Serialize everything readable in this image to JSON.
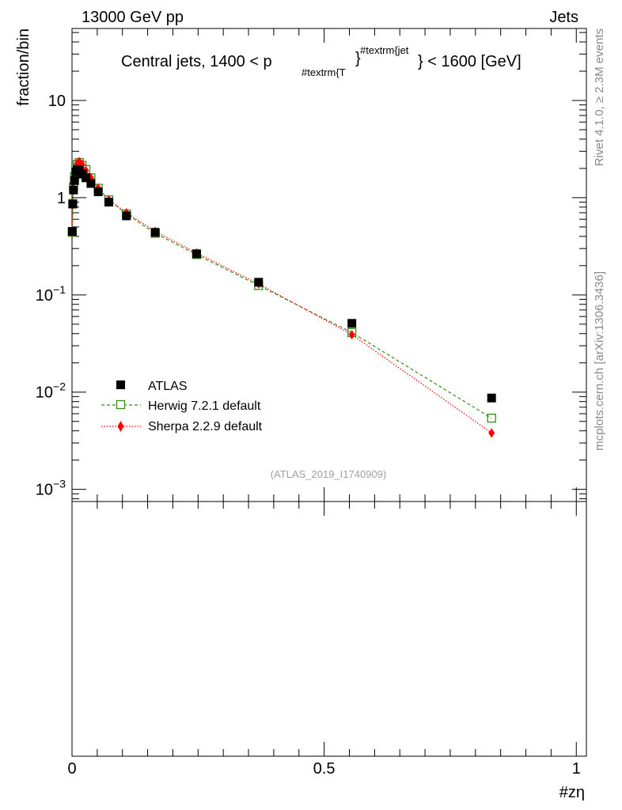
{
  "header": {
    "left": "13000 GeV pp",
    "right": "Jets"
  },
  "side_labels": {
    "rivet": "Rivet 4.1.0, ≥ 2.3M events",
    "mcplots": "mcplots.cern.ch [arXiv:1306.3436]"
  },
  "chart_data": {
    "type": "scatter",
    "title_main": "Central jets, 1400 < p",
    "title_sub": "#textrm{T",
    "title_sup": "#textrm{jet",
    "title_tail": "} < 1600 [GeV]",
    "title_brace": "}",
    "ylabel": "fraction/bin",
    "xlabel": "#zη",
    "watermark": "(ATLAS_2019_I1740909)",
    "yscale": "log",
    "ylim": [
      0.00075,
      55
    ],
    "xlim": [
      0,
      1.02
    ],
    "grid": false,
    "legend_position": "left-middle",
    "y_ticks": [
      {
        "v": 10,
        "base": "10",
        "exp": ""
      },
      {
        "v": 1,
        "base": "1",
        "exp": ""
      },
      {
        "v": 0.1,
        "base": "10",
        "exp": "−1"
      },
      {
        "v": 0.01,
        "base": "10",
        "exp": "−2"
      },
      {
        "v": 0.001,
        "base": "10",
        "exp": "−3"
      }
    ],
    "x_ticks": [
      {
        "v": 0,
        "label": "0"
      },
      {
        "v": 0.5,
        "label": "0.5"
      },
      {
        "v": 1,
        "label": "1"
      }
    ],
    "series": [
      {
        "name": "ATLAS",
        "style": "data",
        "color": "#000000",
        "x": [
          0.0005,
          0.0015,
          0.003,
          0.005,
          0.0075,
          0.0105,
          0.0145,
          0.02,
          0.0275,
          0.0375,
          0.052,
          0.073,
          0.108,
          0.165,
          0.247,
          0.37,
          0.555,
          0.832
        ],
        "y": [
          0.45,
          0.86,
          1.2,
          1.5,
          1.85,
          1.95,
          1.9,
          1.75,
          1.6,
          1.4,
          1.15,
          0.9,
          0.65,
          0.44,
          0.265,
          0.135,
          0.051,
          0.0087
        ]
      },
      {
        "name": "Herwig 7.2.1 default",
        "style": "herwig",
        "color": "#3a8a1c",
        "x": [
          0.0005,
          0.0015,
          0.003,
          0.005,
          0.0075,
          0.0105,
          0.0145,
          0.02,
          0.0275,
          0.0375,
          0.052,
          0.073,
          0.108,
          0.165,
          0.247,
          0.37,
          0.555,
          0.832
        ],
        "y": [
          0.44,
          0.87,
          1.3,
          1.65,
          2.0,
          2.2,
          2.3,
          2.15,
          1.95,
          1.6,
          1.25,
          0.95,
          0.68,
          0.43,
          0.26,
          0.125,
          0.041,
          0.0054
        ]
      },
      {
        "name": "Sherpa 2.2.9 default",
        "style": "sherpa",
        "color": "#ff0000",
        "x": [
          0.0005,
          0.0015,
          0.003,
          0.005,
          0.0075,
          0.0105,
          0.0145,
          0.02,
          0.0275,
          0.0375,
          0.052,
          0.073,
          0.108,
          0.165,
          0.247,
          0.37,
          0.555,
          0.832
        ],
        "y": [
          0.45,
          0.87,
          1.25,
          1.6,
          1.95,
          2.25,
          2.35,
          2.2,
          1.9,
          1.6,
          1.25,
          0.95,
          0.7,
          0.45,
          0.27,
          0.13,
          0.039,
          0.0038
        ]
      }
    ]
  }
}
